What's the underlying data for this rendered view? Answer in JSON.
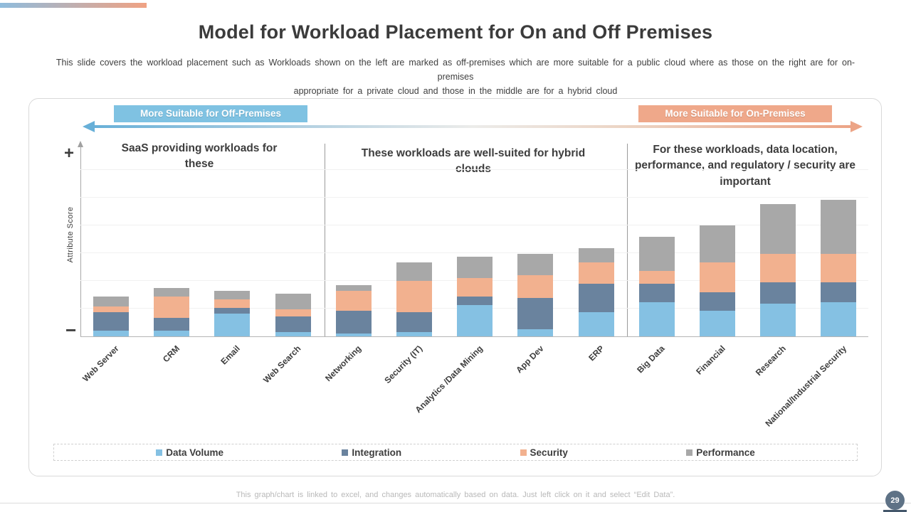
{
  "slide": {
    "title": "Model for Workload Placement for On and Off Premises",
    "subtitle_line1": "This slide covers the workload placement such as Workloads shown on the left are marked as off-premises which are more suitable for a public cloud where as those on the right are for on-premises",
    "subtitle_line2": "appropriate for a private cloud and those in the middle are for a hybrid cloud",
    "footer_note": "This graph/chart is linked to excel, and changes automatically based on data. Just left click on it and select “Edit Data”.",
    "page_number": "29"
  },
  "banners": {
    "off_premises": "More Suitable for Off-Premises",
    "on_premises": "More Suitable for On-Premises"
  },
  "section_headers": {
    "left": "SaaS providing workloads for these",
    "middle": "These workloads are well-suited for hybrid clouds",
    "right": "For these workloads, data location, performance, and regulatory / security are important"
  },
  "y_axis": {
    "label": "Attribute Score",
    "plus": "+",
    "minus": "−"
  },
  "colors": {
    "accent_gradient_start": "#8fbcdd",
    "accent_gradient_end": "#f0a283",
    "banner_blue": "#7fc2e2",
    "banner_orange": "#efa88a",
    "arrow_blue": "#68b0d8",
    "arrow_orange": "#eca486",
    "data_volume": "#85c1e3",
    "integration": "#6a839e",
    "security": "#f2b18f",
    "performance": "#a8a8a8",
    "page_badge": "#5e7286"
  },
  "chart_data": {
    "type": "bar",
    "stacked": true,
    "title": "",
    "xlabel": "",
    "ylabel": "Attribute Score",
    "y_axis_qualitative": "unlabeled scale from − (baseline) to + (top)",
    "grid": true,
    "legend_position": "bottom",
    "categories": [
      "Web Server",
      "CRM",
      "Email",
      "Web Search",
      "Networking",
      "Security (IT)",
      "Analytics /Data Mining",
      "App Dev",
      "ERP",
      "Big Data",
      "Financial",
      "Research",
      "National/Industrial Security"
    ],
    "groups": [
      {
        "label": "SaaS providing workloads for these",
        "categories": [
          "Web Server",
          "CRM",
          "Email",
          "Web Search"
        ]
      },
      {
        "label": "These workloads are well-suited for hybrid clouds",
        "categories": [
          "Networking",
          "Security (IT)",
          "Analytics /Data Mining",
          "App Dev",
          "ERP"
        ]
      },
      {
        "label": "For these workloads, data location, performance, and regulatory / security are important",
        "categories": [
          "Big Data",
          "Financial",
          "Research",
          "National/Industrial Security"
        ]
      }
    ],
    "series": [
      {
        "name": "Data Volume",
        "color": "#85c1e3",
        "values": [
          2,
          2,
          8,
          1.5,
          1,
          1.5,
          11,
          2.5,
          8.5,
          12,
          9,
          11.5,
          12
        ]
      },
      {
        "name": "Integration",
        "color": "#6a839e",
        "values": [
          6.5,
          4.5,
          2,
          5.5,
          8,
          7,
          3,
          11,
          10,
          6.5,
          6.5,
          7.5,
          7
        ]
      },
      {
        "name": "Security",
        "color": "#f2b18f",
        "values": [
          2,
          7.5,
          3,
          2.5,
          7,
          11,
          6.5,
          8,
          7.5,
          4.5,
          10.5,
          10,
          10
        ]
      },
      {
        "name": "Performance",
        "color": "#a8a8a8",
        "values": [
          3.5,
          3,
          3,
          5.5,
          2,
          6.5,
          7.5,
          7.5,
          5,
          12,
          13,
          17.5,
          19
        ]
      }
    ],
    "totals": [
      14,
      17,
      16,
      15,
      18,
      26,
      28,
      29,
      31,
      35,
      39,
      46.5,
      48
    ]
  }
}
